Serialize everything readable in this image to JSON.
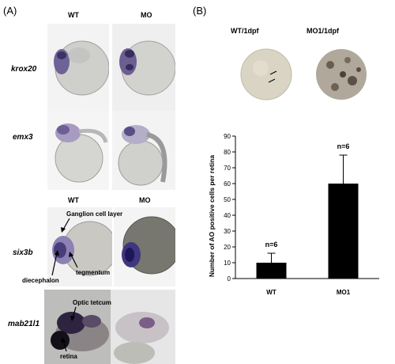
{
  "panel_a": {
    "letter": "(A)",
    "col_wt": "WT",
    "col_mo": "MO",
    "rows": [
      {
        "gene": "krox20"
      },
      {
        "gene": "emx3"
      },
      {
        "gene": "six3b",
        "col_wt": "WT",
        "col_mo": "MO",
        "annotations": [
          "Ganglion cell layer",
          "tegmentum",
          "diecephalon"
        ]
      },
      {
        "gene": "mab21l1",
        "annotations": [
          "Optic tetcum",
          "retina"
        ]
      }
    ]
  },
  "panel_b": {
    "letter": "(B)",
    "img_wt_label": "WT/1dpf",
    "img_mo_label": "MO1/1dpf"
  },
  "chart_data": {
    "type": "bar",
    "categories": [
      "WT",
      "MO1"
    ],
    "values": [
      10,
      60
    ],
    "error": [
      6,
      18
    ],
    "bar_labels": [
      "n=6",
      "n=6"
    ],
    "ylabel": "Number of AO positive cells per retina",
    "xlabel": "",
    "ylim": [
      0,
      90
    ],
    "yticks": [
      0,
      10,
      20,
      30,
      40,
      50,
      60,
      70,
      80,
      90
    ],
    "colors": {
      "bar": "#000000"
    }
  }
}
